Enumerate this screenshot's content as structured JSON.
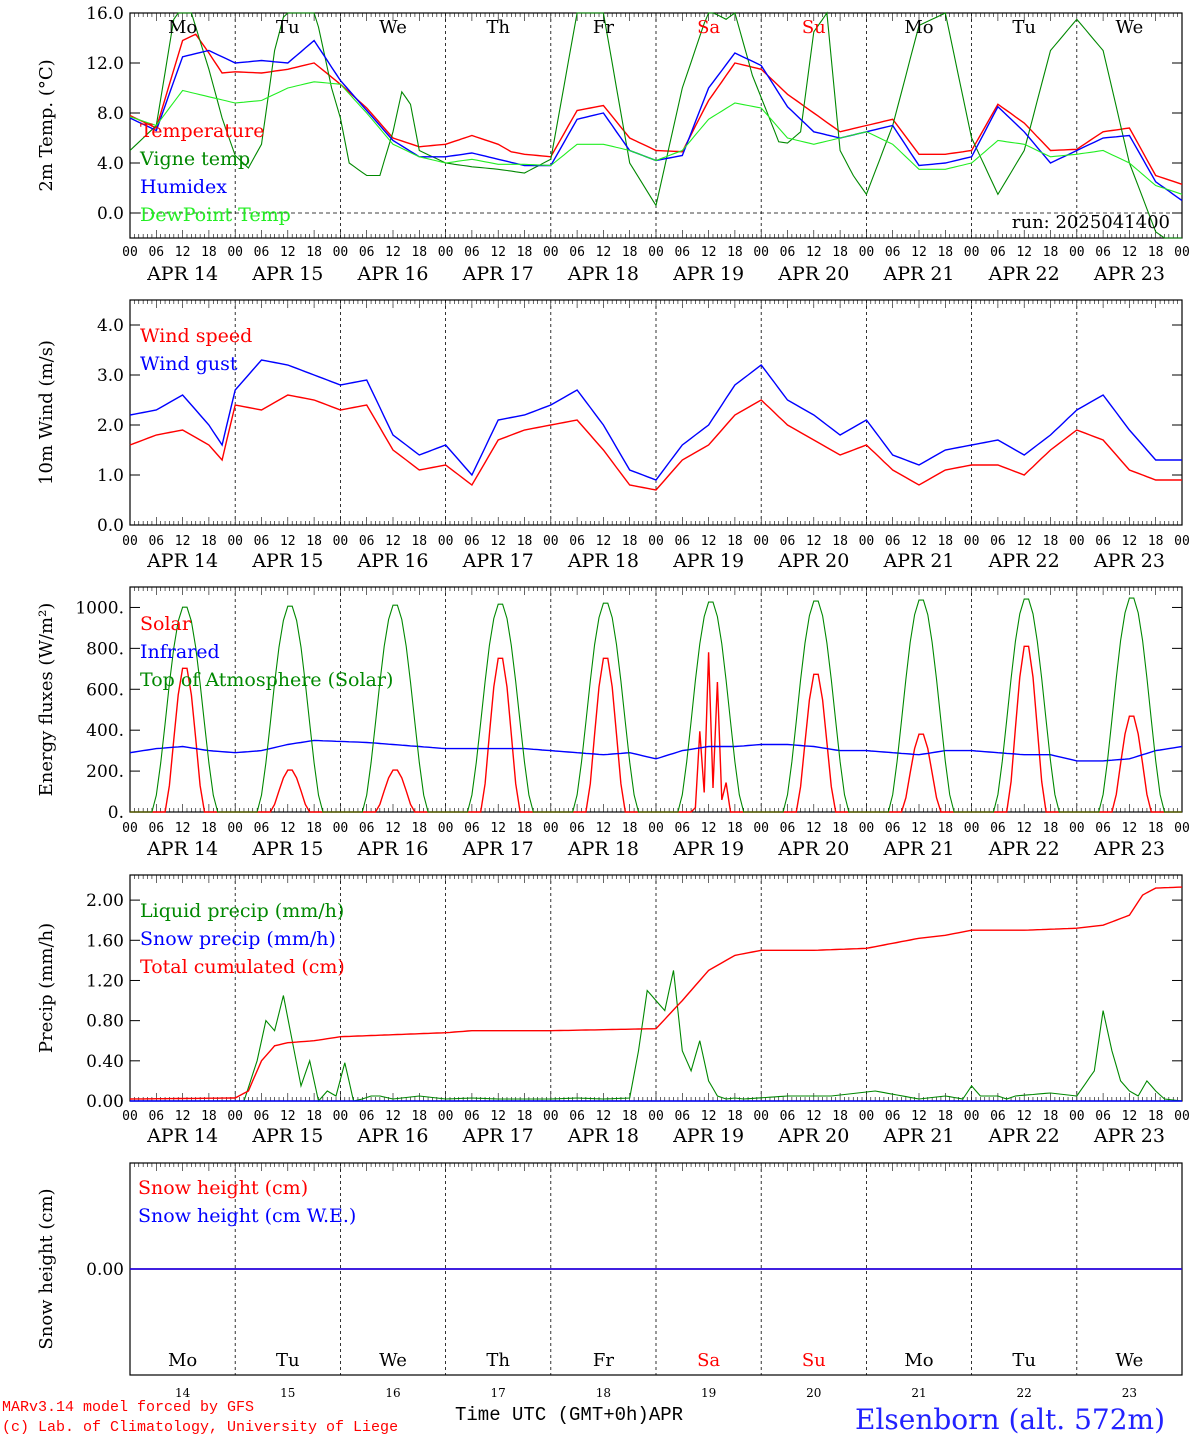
{
  "days": [
    "APR 14",
    "APR 15",
    "APR 16",
    "APR 17",
    "APR 18",
    "APR 19",
    "APR 20",
    "APR 21",
    "APR 22",
    "APR 23"
  ],
  "weekdays": [
    "Mo",
    "Tu",
    "We",
    "Th",
    "Fr",
    "Sa",
    "Su",
    "Mo",
    "Tu",
    "We"
  ],
  "weekend_flags": [
    false,
    false,
    false,
    false,
    false,
    true,
    true,
    false,
    false,
    false
  ],
  "hour_ticks": [
    "00",
    "06",
    "12",
    "18"
  ],
  "day_numbers": [
    "14",
    "15",
    "16",
    "17",
    "18",
    "19",
    "20",
    "21",
    "22",
    "23"
  ],
  "colors": {
    "red": "#ff0000",
    "green": "#008800",
    "blue": "#0000ff",
    "lightgreen": "#22ee22"
  },
  "footer": {
    "model_line1": "MARv3.14 model forced by GFS",
    "model_line2": "(c) Lab. of Climatology, University of Liege",
    "xlabel": "Time UTC (GMT+0h)",
    "month": "APR",
    "station": "Elsenborn (alt. 572m)"
  },
  "chart_data": [
    {
      "type": "line",
      "ylabel": "2m Temp. (°C)",
      "ylim": [
        -2,
        16
      ],
      "yticks": [
        "0.0",
        "4.0",
        "8.0",
        "12.0",
        "16.0"
      ],
      "ytick_values": [
        0,
        4,
        8,
        12,
        16
      ],
      "zero_dashed": true,
      "annotation": "run: 2025041400",
      "x_unit": "hours since APR 14 00 UTC",
      "series": [
        {
          "name": "Temperature",
          "color": "red",
          "x": [
            0,
            6,
            12,
            15,
            18,
            21,
            24,
            30,
            36,
            42,
            48,
            54,
            60,
            66,
            72,
            78,
            84,
            87,
            90,
            96,
            102,
            108,
            114,
            120,
            126,
            132,
            138,
            144,
            150,
            156,
            162,
            168,
            174,
            180,
            186,
            192,
            198,
            204,
            210,
            216,
            222,
            228,
            234,
            240
          ],
          "y": [
            7.8,
            6.8,
            13.8,
            14.3,
            12.8,
            11.2,
            11.3,
            11.2,
            11.5,
            12.0,
            10.3,
            8.4,
            6.0,
            5.3,
            5.5,
            6.2,
            5.5,
            4.9,
            4.7,
            4.5,
            8.2,
            8.6,
            6.0,
            5.0,
            4.9,
            9.0,
            12.0,
            11.5,
            9.5,
            8.0,
            6.5,
            7.0,
            7.5,
            4.7,
            4.7,
            5.0,
            8.7,
            7.2,
            5.0,
            5.1,
            6.5,
            6.8,
            3.0,
            2.3
          ]
        },
        {
          "name": "Vigne temp",
          "color": "green",
          "x": [
            0,
            6,
            10,
            12,
            14,
            18,
            21,
            24,
            27,
            30,
            33,
            36,
            39,
            42,
            46,
            48,
            50,
            54,
            57,
            60,
            62,
            64,
            66,
            72,
            78,
            84,
            90,
            96,
            102,
            105,
            108,
            114,
            120,
            126,
            132,
            136,
            138,
            142,
            148,
            150,
            153,
            156,
            159,
            162,
            165,
            168,
            174,
            180,
            186,
            192,
            198,
            204,
            210,
            216,
            222,
            228,
            234,
            240
          ],
          "y": [
            5.0,
            7.0,
            15.5,
            16.5,
            16.0,
            11.5,
            7.6,
            4.6,
            3.6,
            5.5,
            13.0,
            17.0,
            16.0,
            16.5,
            10.0,
            7.6,
            4.0,
            3.0,
            3.0,
            6.5,
            9.7,
            8.7,
            5.0,
            4.0,
            3.7,
            3.5,
            3.2,
            4.3,
            16.0,
            17.0,
            16.0,
            4.0,
            0.6,
            10.0,
            16.2,
            15.5,
            16.0,
            11.0,
            5.7,
            5.6,
            6.5,
            14.5,
            16.0,
            5.0,
            3.0,
            1.5,
            7.0,
            15.0,
            16.0,
            6.0,
            1.5,
            5.0,
            13.0,
            15.5,
            13.0,
            4.0,
            -1.5,
            -3.0
          ]
        },
        {
          "name": "Humidex",
          "color": "blue",
          "x": [
            0,
            6,
            12,
            18,
            24,
            30,
            36,
            42,
            48,
            54,
            60,
            66,
            72,
            78,
            84,
            90,
            96,
            102,
            108,
            114,
            120,
            126,
            132,
            138,
            144,
            150,
            156,
            162,
            168,
            174,
            180,
            186,
            192,
            198,
            204,
            210,
            216,
            222,
            228,
            234,
            240
          ],
          "y": [
            7.6,
            6.6,
            12.5,
            13.0,
            12.0,
            12.2,
            12.0,
            13.8,
            10.6,
            8.2,
            5.8,
            4.5,
            4.5,
            4.8,
            4.3,
            3.8,
            3.8,
            7.5,
            8.0,
            5.0,
            4.2,
            4.6,
            10.0,
            12.8,
            11.8,
            8.5,
            6.5,
            6.0,
            6.5,
            7.0,
            3.8,
            4.0,
            4.5,
            8.5,
            6.5,
            4.0,
            5.0,
            6.0,
            6.2,
            2.5,
            1.0
          ]
        },
        {
          "name": "DewPoint Temp",
          "color": "lightgreen",
          "x": [
            0,
            6,
            12,
            18,
            24,
            30,
            36,
            42,
            48,
            54,
            60,
            66,
            72,
            78,
            84,
            90,
            96,
            102,
            108,
            114,
            120,
            126,
            132,
            138,
            144,
            150,
            156,
            162,
            168,
            174,
            180,
            186,
            192,
            198,
            204,
            210,
            216,
            222,
            228,
            234,
            240
          ],
          "y": [
            7.7,
            7.0,
            9.8,
            9.3,
            8.8,
            9.0,
            10.0,
            10.5,
            10.3,
            8.0,
            5.5,
            4.5,
            4.0,
            4.3,
            3.9,
            3.9,
            3.8,
            5.5,
            5.5,
            5.0,
            4.2,
            5.0,
            7.5,
            8.8,
            8.4,
            6.0,
            5.5,
            6.0,
            6.5,
            5.5,
            3.5,
            3.5,
            4.0,
            5.8,
            5.5,
            4.5,
            4.7,
            5.0,
            4.0,
            2.2,
            1.5
          ]
        }
      ]
    },
    {
      "type": "line",
      "ylabel": "10m Wind (m/s)",
      "ylim": [
        0,
        4.5
      ],
      "yticks": [
        "0.0",
        "1.0",
        "2.0",
        "3.0",
        "4.0"
      ],
      "ytick_values": [
        0,
        1,
        2,
        3,
        4
      ],
      "series": [
        {
          "name": "Wind speed",
          "color": "red",
          "x": [
            0,
            6,
            12,
            18,
            21,
            24,
            30,
            36,
            42,
            48,
            54,
            60,
            66,
            72,
            78,
            84,
            90,
            96,
            102,
            108,
            114,
            120,
            126,
            132,
            138,
            144,
            150,
            156,
            162,
            168,
            174,
            180,
            186,
            192,
            198,
            204,
            210,
            216,
            222,
            228,
            234,
            240
          ],
          "y": [
            1.6,
            1.8,
            1.9,
            1.6,
            1.3,
            2.4,
            2.3,
            2.6,
            2.5,
            2.3,
            2.4,
            1.5,
            1.1,
            1.2,
            0.8,
            1.7,
            1.9,
            2.0,
            2.1,
            1.5,
            0.8,
            0.7,
            1.3,
            1.6,
            2.2,
            2.5,
            2.0,
            1.7,
            1.4,
            1.6,
            1.1,
            0.8,
            1.1,
            1.2,
            1.2,
            1.0,
            1.5,
            1.9,
            1.7,
            1.1,
            0.9,
            0.9
          ]
        },
        {
          "name": "Wind gust",
          "color": "blue",
          "x": [
            0,
            6,
            12,
            18,
            21,
            24,
            30,
            36,
            42,
            48,
            54,
            60,
            66,
            72,
            78,
            84,
            90,
            96,
            102,
            108,
            114,
            120,
            126,
            132,
            138,
            144,
            150,
            156,
            162,
            168,
            174,
            180,
            186,
            192,
            198,
            204,
            210,
            216,
            222,
            228,
            234,
            240
          ],
          "y": [
            2.2,
            2.3,
            2.6,
            2.0,
            1.6,
            2.7,
            3.3,
            3.2,
            3.0,
            2.8,
            2.9,
            1.8,
            1.4,
            1.6,
            1.0,
            2.1,
            2.2,
            2.4,
            2.7,
            2.0,
            1.1,
            0.9,
            1.6,
            2.0,
            2.8,
            3.2,
            2.5,
            2.2,
            1.8,
            2.1,
            1.4,
            1.2,
            1.5,
            1.6,
            1.7,
            1.4,
            1.8,
            2.3,
            2.6,
            1.9,
            1.3,
            1.3
          ]
        }
      ]
    },
    {
      "type": "line",
      "ylabel": "Energy fluxes (W/m²)",
      "ylim": [
        0,
        1100
      ],
      "yticks": [
        "0.",
        "200.",
        "400.",
        "600.",
        "800.",
        "1000."
      ],
      "ytick_values": [
        0,
        200,
        400,
        600,
        800,
        1000
      ],
      "series": [
        {
          "name": "Solar",
          "color": "red",
          "peaks": [
            720,
            210,
            210,
            770,
            770,
            800,
            690,
            390,
            830,
            480
          ]
        },
        {
          "name": "Infrared",
          "color": "blue",
          "x": [
            0,
            6,
            12,
            18,
            24,
            30,
            36,
            42,
            48,
            54,
            60,
            66,
            72,
            78,
            84,
            90,
            96,
            102,
            108,
            114,
            120,
            126,
            132,
            138,
            144,
            150,
            156,
            162,
            168,
            174,
            180,
            186,
            192,
            198,
            204,
            210,
            216,
            222,
            228,
            234,
            240
          ],
          "y": [
            290,
            310,
            320,
            300,
            290,
            300,
            330,
            350,
            345,
            340,
            330,
            320,
            310,
            310,
            310,
            310,
            300,
            290,
            280,
            290,
            260,
            300,
            320,
            320,
            330,
            330,
            320,
            300,
            300,
            290,
            280,
            300,
            300,
            290,
            280,
            280,
            250,
            250,
            260,
            300,
            320
          ]
        },
        {
          "name": "Top of Atmosphere (Solar)",
          "color": "green",
          "peaks": [
            1010,
            1015,
            1020,
            1025,
            1030,
            1035,
            1040,
            1045,
            1050,
            1055
          ]
        }
      ]
    },
    {
      "type": "line",
      "ylabel": "Precip (mm/h)",
      "ylim": [
        0,
        2.25
      ],
      "yticks": [
        "0.00",
        "0.40",
        "0.80",
        "1.20",
        "1.60",
        "2.00"
      ],
      "ytick_values": [
        0,
        0.4,
        0.8,
        1.2,
        1.6,
        2.0
      ],
      "series": [
        {
          "name": "Liquid precip (mm/h)",
          "color": "green",
          "x": [
            0,
            26,
            29,
            31,
            33,
            35,
            37,
            39,
            41,
            43,
            45,
            47,
            49,
            51,
            53,
            55,
            57,
            60,
            66,
            72,
            78,
            84,
            90,
            96,
            102,
            108,
            114,
            116,
            118,
            120,
            122,
            124,
            126,
            128,
            130,
            132,
            134,
            136,
            138,
            140,
            150,
            160,
            170,
            180,
            186,
            190,
            192,
            194,
            196,
            198,
            200,
            202,
            210,
            216,
            220,
            222,
            224,
            226,
            228,
            230,
            232,
            234,
            236,
            240
          ],
          "y": [
            0,
            0,
            0.4,
            0.8,
            0.7,
            1.05,
            0.6,
            0.15,
            0.4,
            0,
            0.1,
            0.05,
            0.38,
            0,
            0.02,
            0.05,
            0.05,
            0.02,
            0.05,
            0.02,
            0.03,
            0.02,
            0.02,
            0.02,
            0.03,
            0.02,
            0.03,
            0.5,
            1.1,
            1.0,
            0.9,
            1.3,
            0.5,
            0.3,
            0.6,
            0.2,
            0.05,
            0.02,
            0.03,
            0.02,
            0.05,
            0.05,
            0.1,
            0.02,
            0.05,
            0.02,
            0.15,
            0.05,
            0.05,
            0.05,
            0.02,
            0.05,
            0.08,
            0.05,
            0.3,
            0.9,
            0.5,
            0.2,
            0.1,
            0.05,
            0.2,
            0.1,
            0.02,
            0.0
          ]
        },
        {
          "name": "Snow precip (mm/h)",
          "color": "blue",
          "x": [
            0,
            240
          ],
          "y": [
            0,
            0
          ]
        },
        {
          "name": "Total cumulated (cm)",
          "color": "red",
          "x": [
            0,
            24,
            27,
            30,
            33,
            36,
            42,
            48,
            54,
            60,
            66,
            72,
            78,
            84,
            96,
            108,
            120,
            126,
            132,
            138,
            144,
            150,
            156,
            168,
            180,
            186,
            192,
            198,
            204,
            216,
            222,
            228,
            231,
            234,
            240
          ],
          "y": [
            0.02,
            0.03,
            0.1,
            0.4,
            0.55,
            0.58,
            0.6,
            0.64,
            0.65,
            0.66,
            0.67,
            0.68,
            0.7,
            0.7,
            0.7,
            0.71,
            0.72,
            1.0,
            1.3,
            1.45,
            1.5,
            1.5,
            1.5,
            1.52,
            1.62,
            1.65,
            1.7,
            1.7,
            1.7,
            1.72,
            1.75,
            1.85,
            2.05,
            2.12,
            2.13
          ]
        }
      ]
    },
    {
      "type": "line",
      "ylim": [
        -1,
        1
      ],
      "yticks": [
        "0.00"
      ],
      "ytick_values": [
        0
      ],
      "series": [
        {
          "name": "Snow height (cm)",
          "color": "red",
          "x": [
            0,
            240
          ],
          "y": [
            0,
            0
          ]
        },
        {
          "name": "Snow height (cm W.E.)",
          "color": "blue",
          "x": [
            0,
            240
          ],
          "y": [
            0,
            0
          ]
        }
      ]
    }
  ],
  "ylabels": [
    "2m Temp. (°C)",
    "10m Wind (m/s)",
    "Energy fluxes (W/m²)",
    "Precip (mm/h)",
    "Snow height (cm)"
  ],
  "panel_annotations": {
    "run": "run: 2025041400"
  }
}
